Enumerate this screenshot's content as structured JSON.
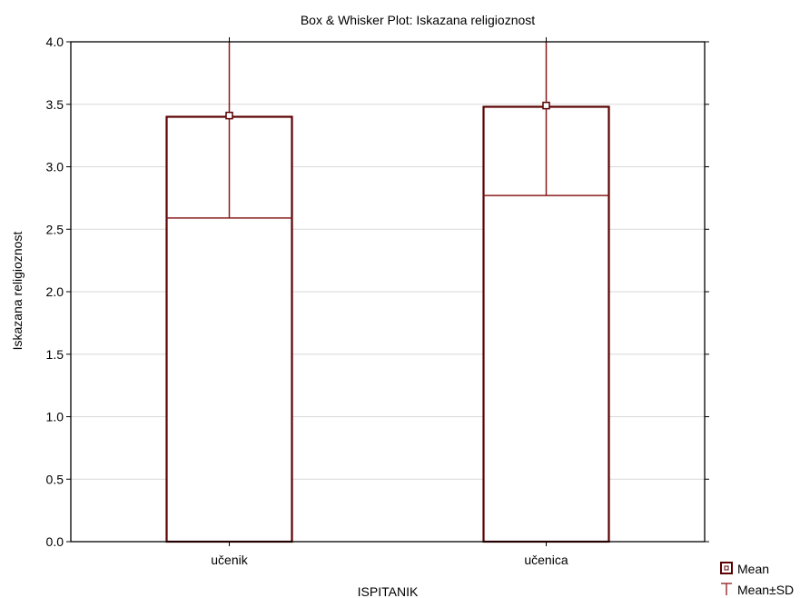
{
  "chart_data": {
    "type": "box",
    "title": "Box & Whisker Plot: Iskazana religioznost",
    "xlabel": "ISPITANIK",
    "ylabel": "Iskazana religioznost",
    "ylim": [
      0,
      4
    ],
    "yticks": [
      "0.0",
      "0.5",
      "1.0",
      "1.5",
      "2.0",
      "2.5",
      "3.0",
      "3.5",
      "4.0"
    ],
    "categories": [
      "učenik",
      "učenica"
    ],
    "series": [
      {
        "category": "učenik",
        "mean": 3.41,
        "sd_low": 2.59,
        "sd_high": 4.23,
        "box_top": 3.4
      },
      {
        "category": "učenica",
        "mean": 3.49,
        "sd_low": 2.77,
        "sd_high": 4.21,
        "box_top": 3.48
      }
    ],
    "legend": {
      "position": "bottom-right",
      "items": [
        "Mean",
        "Mean±SD"
      ]
    },
    "grid": true,
    "colors": {
      "box": "#5a0000",
      "whisker": "#8b1a1a",
      "grid": "#d9d9d9"
    }
  }
}
